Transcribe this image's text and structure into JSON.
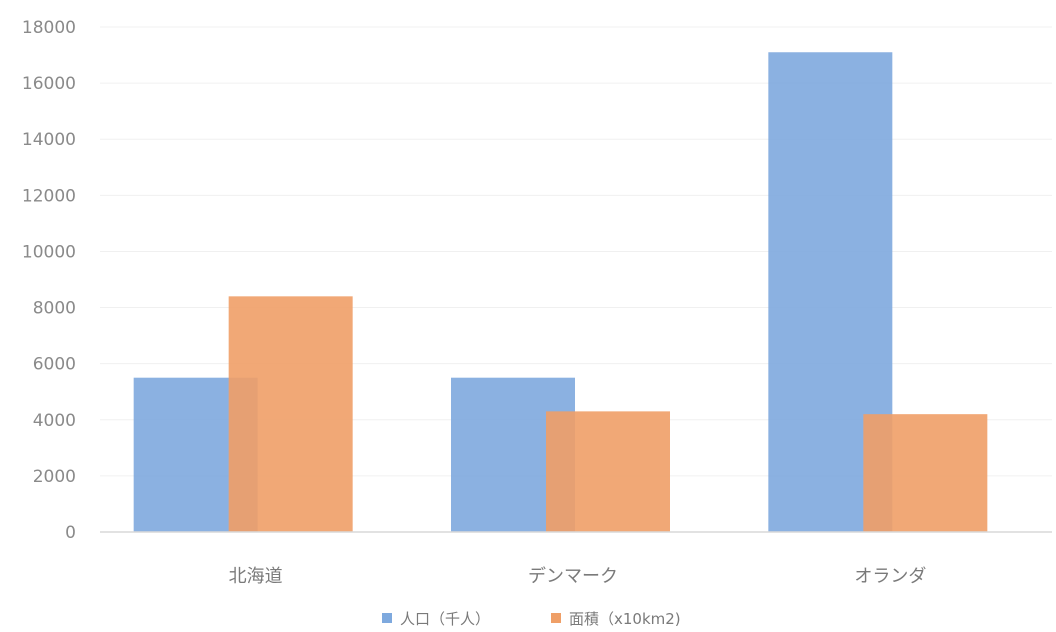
{
  "chart_data": {
    "type": "bar",
    "title": "",
    "xlabel": "",
    "ylabel": "",
    "categories": [
      "北海道",
      "デンマーク",
      "オランダ"
    ],
    "series": [
      {
        "name": "人口（千人）",
        "values": [
          5500,
          5500,
          17100
        ],
        "color": "#7ea9de"
      },
      {
        "name": "面積（x10km2)",
        "values": [
          8400,
          4300,
          4200
        ],
        "color": "#ef9f67"
      }
    ],
    "ylim": [
      0,
      18000
    ],
    "yticks": [
      0,
      2000,
      4000,
      6000,
      8000,
      10000,
      12000,
      14000,
      16000,
      18000
    ],
    "grid": true,
    "legend_position": "bottom"
  }
}
